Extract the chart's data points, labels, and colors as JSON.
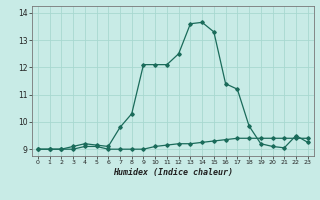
{
  "xlabel": "Humidex (Indice chaleur)",
  "ylabel": "",
  "background_color": "#c8ebe6",
  "grid_color": "#a8d8d0",
  "line_color": "#1a6b5a",
  "xlim": [
    -0.5,
    23.5
  ],
  "ylim": [
    8.75,
    14.25
  ],
  "xticks": [
    0,
    1,
    2,
    3,
    4,
    5,
    6,
    7,
    8,
    9,
    10,
    11,
    12,
    13,
    14,
    15,
    16,
    17,
    18,
    19,
    20,
    21,
    22,
    23
  ],
  "yticks": [
    9,
    10,
    11,
    12,
    13,
    14
  ],
  "series1_x": [
    0,
    1,
    2,
    3,
    4,
    5,
    6,
    7,
    8,
    9,
    10,
    11,
    12,
    13,
    14,
    15,
    16,
    17,
    18,
    19,
    20,
    21,
    22,
    23
  ],
  "series1_y": [
    9.0,
    9.0,
    9.0,
    9.0,
    9.1,
    9.1,
    9.0,
    9.0,
    9.0,
    9.0,
    9.1,
    9.15,
    9.2,
    9.2,
    9.25,
    9.3,
    9.35,
    9.4,
    9.4,
    9.4,
    9.4,
    9.4,
    9.4,
    9.4
  ],
  "series2_x": [
    0,
    1,
    2,
    3,
    4,
    5,
    6,
    7,
    8,
    9,
    10,
    11,
    12,
    13,
    14,
    15,
    16,
    17,
    18,
    19,
    20,
    21,
    22,
    23
  ],
  "series2_y": [
    9.0,
    9.0,
    9.0,
    9.1,
    9.2,
    9.15,
    9.1,
    9.8,
    10.3,
    12.1,
    12.1,
    12.1,
    12.5,
    13.6,
    13.65,
    13.3,
    11.4,
    11.2,
    9.85,
    9.2,
    9.1,
    9.05,
    9.5,
    9.25
  ]
}
